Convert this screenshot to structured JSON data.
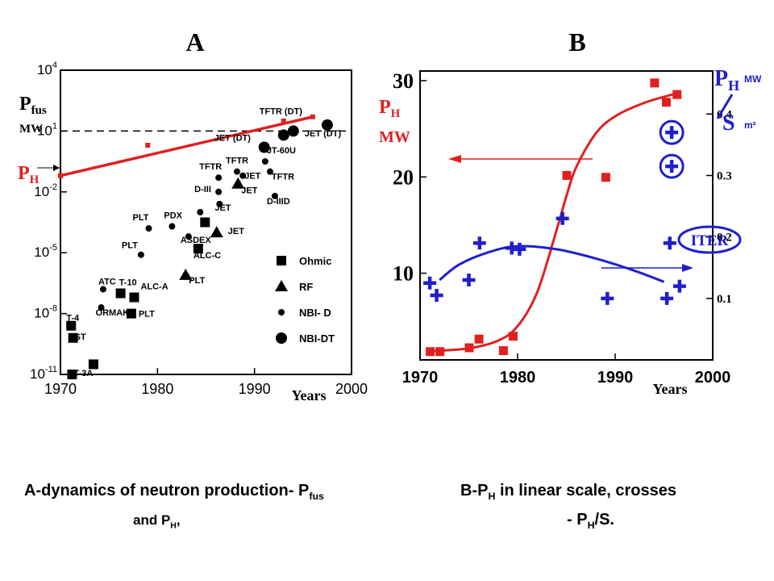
{
  "panel_a": {
    "letter": "A"
  },
  "panel_b": {
    "letter": "B"
  },
  "colors": {
    "red": "#e02020",
    "blue": "#1f1fcc",
    "black": "#000000"
  },
  "chart_data": [
    {
      "type": "scatter",
      "ylabel_main": "P",
      "ylabel_sub": "fus",
      "ylabel_unit": "MW",
      "ph_label_main": "P",
      "ph_label_sub": "H",
      "xlabel": "Years",
      "log_y": true,
      "xlim": [
        1970,
        2000
      ],
      "ylim_exp": [
        -11,
        4
      ],
      "x_ticks": [
        "1970",
        "1980",
        "1990",
        "2000"
      ],
      "y_tick_exps": [
        4,
        1,
        -2,
        -5,
        -8,
        -11
      ],
      "dashed_line_y": 10,
      "legend": [
        {
          "label": "Ohmic",
          "marker": "square"
        },
        {
          "label": "RF",
          "marker": "triangle"
        },
        {
          "label": "NBI- D",
          "marker": "small-circle"
        },
        {
          "label": "NBI-DT",
          "marker": "large-circle"
        }
      ],
      "ph_line": {
        "x": [
          1970,
          1996
        ],
        "y_exp": [
          -1.2,
          1.7
        ]
      },
      "ph_points": [
        {
          "x": 1970,
          "y_exp": -1.2
        },
        {
          "x": 1979,
          "y_exp": 0.3
        },
        {
          "x": 1993,
          "y_exp": 1.5
        },
        {
          "x": 1996,
          "y_exp": 1.7
        }
      ],
      "points": [
        {
          "x": 1971.2,
          "y_exp": -11.0,
          "marker": "square",
          "label": "T-3A",
          "lx": 2,
          "ly": 2
        },
        {
          "x": 1973.4,
          "y_exp": -10.5,
          "marker": "square",
          "label": "",
          "lx": 0,
          "ly": 0
        },
        {
          "x": 1971.3,
          "y_exp": -9.2,
          "marker": "square",
          "label": "ST",
          "lx": 2,
          "ly": 2
        },
        {
          "x": 1971.1,
          "y_exp": -8.6,
          "marker": "square",
          "label": "T-4",
          "lx": -6,
          "ly": -6
        },
        {
          "x": 1974.2,
          "y_exp": -7.7,
          "marker": "small-circle",
          "label": "ORMAK",
          "lx": -7,
          "ly": 10
        },
        {
          "x": 1974.4,
          "y_exp": -6.8,
          "marker": "small-circle",
          "label": "ATC",
          "lx": -6,
          "ly": -6
        },
        {
          "x": 1976.2,
          "y_exp": -7.0,
          "marker": "square",
          "label": "T-10",
          "lx": -2,
          "ly": -10
        },
        {
          "x": 1977.3,
          "y_exp": -8.0,
          "marker": "square",
          "label": "PLT",
          "lx": 9,
          "ly": 4
        },
        {
          "x": 1977.6,
          "y_exp": -7.2,
          "marker": "square",
          "label": "ALC-A",
          "lx": 8,
          "ly": -10
        },
        {
          "x": 1978.3,
          "y_exp": -5.1,
          "marker": "small-circle",
          "label": "PLT",
          "lx": -24,
          "ly": -8
        },
        {
          "x": 1979.1,
          "y_exp": -3.8,
          "marker": "small-circle",
          "label": "PLT",
          "lx": -20,
          "ly": -10
        },
        {
          "x": 1981.5,
          "y_exp": -3.7,
          "marker": "small-circle",
          "label": "PDX",
          "lx": -10,
          "ly": -10
        },
        {
          "x": 1983.2,
          "y_exp": -4.2,
          "marker": "small-circle",
          "label": "ASDEX",
          "lx": -10,
          "ly": 8
        },
        {
          "x": 1982.9,
          "y_exp": -6.1,
          "marker": "triangle",
          "label": "PLT",
          "lx": 4,
          "ly": 10
        },
        {
          "x": 1984.2,
          "y_exp": -4.8,
          "marker": "square",
          "label": "ALC-C",
          "lx": -6,
          "ly": 12
        },
        {
          "x": 1984.9,
          "y_exp": -3.5,
          "marker": "square",
          "label": "",
          "lx": 0,
          "ly": 0
        },
        {
          "x": 1984.4,
          "y_exp": -3.0,
          "marker": "small-circle",
          "label": "",
          "lx": 0,
          "ly": 0
        },
        {
          "x": 1986.1,
          "y_exp": -4.0,
          "marker": "triangle",
          "label": "JET",
          "lx": 14,
          "ly": 2
        },
        {
          "x": 1986.3,
          "y_exp": -1.3,
          "marker": "small-circle",
          "label": "TFTR",
          "lx": -24,
          "ly": -10
        },
        {
          "x": 1986.3,
          "y_exp": -2.0,
          "marker": "small-circle",
          "label": "D-III",
          "lx": -30,
          "ly": 0
        },
        {
          "x": 1986.4,
          "y_exp": -2.6,
          "marker": "small-circle",
          "label": "JET",
          "lx": -6,
          "ly": 8
        },
        {
          "x": 1988.2,
          "y_exp": -1.0,
          "marker": "small-circle",
          "label": "TFTR",
          "lx": -14,
          "ly": -10
        },
        {
          "x": 1988.3,
          "y_exp": -1.6,
          "marker": "triangle",
          "label": "JET",
          "lx": 4,
          "ly": 12
        },
        {
          "x": 1988.8,
          "y_exp": -1.2,
          "marker": "small-circle",
          "label": "JET",
          "lx": 2,
          "ly": 4
        },
        {
          "x": 1991.1,
          "y_exp": -0.5,
          "marker": "small-circle",
          "label": "JT-60U",
          "lx": 2,
          "ly": -10
        },
        {
          "x": 1991.6,
          "y_exp": -1.0,
          "marker": "small-circle",
          "label": "TFTR",
          "lx": 2,
          "ly": 10
        },
        {
          "x": 1992.1,
          "y_exp": -2.2,
          "marker": "small-circle",
          "label": "D-IIID",
          "lx": -10,
          "ly": 10
        },
        {
          "x": 1991.0,
          "y_exp": 0.2,
          "marker": "large-circle",
          "label": "JET (DT)",
          "lx": -62,
          "ly": -8
        },
        {
          "x": 1993.0,
          "y_exp": 0.8,
          "marker": "large-circle",
          "label": "TFTR (DT)",
          "lx": -30,
          "ly": -26
        },
        {
          "x": 1994.0,
          "y_exp": 1.0,
          "marker": "large-circle",
          "label": "",
          "lx": 0,
          "ly": 0
        },
        {
          "x": 1997.5,
          "y_exp": 1.3,
          "marker": "large-circle",
          "label": "JET (DT)",
          "lx": -28,
          "ly": 14
        }
      ]
    },
    {
      "type": "scatter",
      "left_ylabel_main": "P",
      "left_ylabel_sub": "H",
      "left_ylabel_unit": "MW",
      "right_ylabel_main": "P",
      "right_ylabel_sub": "H",
      "right_ylabel_unit_top": "MW",
      "right_ylabel_denominator": "S",
      "right_ylabel_unit_bottom": "m²",
      "xlabel": "Years",
      "xlim": [
        1970,
        2000
      ],
      "x_ticks": [
        "1970",
        "1980",
        "1990",
        "2000"
      ],
      "left_ylim": [
        1,
        31
      ],
      "left_y_ticks": [
        "10",
        "20",
        "30"
      ],
      "right_ylim": [
        0.0,
        0.47
      ],
      "right_y_ticks": [
        "0.1",
        "0.2",
        "0.3",
        "0.4"
      ],
      "iter_label": "ITER",
      "series": [
        {
          "name": "P_H",
          "marker": "square",
          "color": "#e02020",
          "axis": "left",
          "points": [
            [
              1971,
              1.9
            ],
            [
              1972,
              1.9
            ],
            [
              1975,
              2.3
            ],
            [
              1976,
              3.2
            ],
            [
              1978.5,
              2.0
            ],
            [
              1979.5,
              3.5
            ],
            [
              1985,
              20.2
            ],
            [
              1989,
              20.0
            ],
            [
              1994,
              29.8
            ],
            [
              1995.2,
              27.8
            ],
            [
              1996.3,
              28.6
            ]
          ]
        },
        {
          "name": "P_H/S",
          "marker": "cross",
          "color": "#1f1fcc",
          "axis": "right",
          "points": [
            [
              1971,
              0.125
            ],
            [
              1971.7,
              0.105
            ],
            [
              1975,
              0.13
            ],
            [
              1976.1,
              0.19
            ],
            [
              1979.4,
              0.182
            ],
            [
              1980.2,
              0.18
            ],
            [
              1984.6,
              0.23
            ],
            [
              1989.2,
              0.1
            ],
            [
              1995.3,
              0.1
            ],
            [
              1995.6,
              0.19
            ],
            [
              1996.6,
              0.12
            ]
          ]
        }
      ],
      "red_fit": [
        [
          1971,
          1.9
        ],
        [
          1975,
          2.2
        ],
        [
          1978,
          3.0
        ],
        [
          1980,
          4.5
        ],
        [
          1982,
          8.0
        ],
        [
          1984,
          14.5
        ],
        [
          1985,
          18.0
        ],
        [
          1986,
          21.0
        ],
        [
          1988,
          24.5
        ],
        [
          1990,
          26.3
        ],
        [
          1993,
          27.7
        ],
        [
          1996,
          28.6
        ]
      ],
      "blue_fit": [
        [
          1972,
          0.13
        ],
        [
          1974,
          0.155
        ],
        [
          1977,
          0.175
        ],
        [
          1980,
          0.185
        ],
        [
          1984,
          0.18
        ],
        [
          1988,
          0.165
        ],
        [
          1992,
          0.145
        ],
        [
          1995,
          0.127
        ]
      ],
      "plus_circles": [
        {
          "x": 1995.3,
          "y": 0.37
        },
        {
          "x": 1995.3,
          "y": 0.315
        }
      ]
    }
  ],
  "captions": {
    "a_line1": "A-dynamics of neutron production- P",
    "a_sub": "fus",
    "a_line2_pre": "and P",
    "a_line2_sub": "H",
    "a_line2_post": ",",
    "b_line1_pre": "B-P",
    "b_line1_sub": "H",
    "b_line1_post": " in linear scale, crosses",
    "b_line2_pre": "- P",
    "b_line2_sub": "H",
    "b_line2_post": "/S."
  }
}
